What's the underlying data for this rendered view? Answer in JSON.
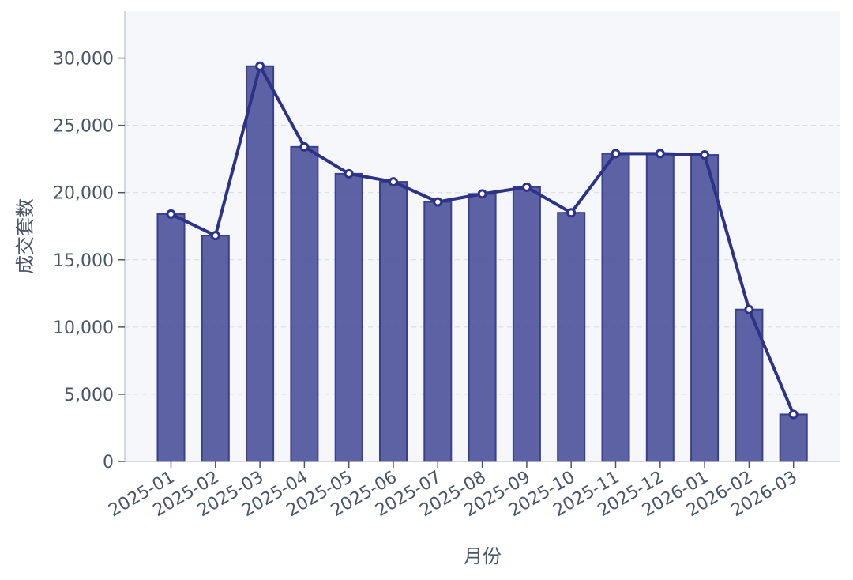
{
  "chart_data": {
    "type": "bar",
    "categories": [
      "2025-01",
      "2025-02",
      "2025-03",
      "2025-04",
      "2025-05",
      "2025-06",
      "2025-07",
      "2025-08",
      "2025-09",
      "2025-10",
      "2025-11",
      "2025-12",
      "2026-01",
      "2026-02",
      "2026-03"
    ],
    "series": [
      {
        "type": "bar",
        "values": [
          18400,
          16800,
          29400,
          23400,
          21400,
          20800,
          19300,
          19900,
          20400,
          18500,
          22900,
          22900,
          22800,
          11300,
          3500
        ]
      },
      {
        "type": "line",
        "values": [
          18400,
          16800,
          29400,
          23400,
          21400,
          20800,
          19300,
          19900,
          20400,
          18500,
          22900,
          22900,
          22800,
          11300,
          3500
        ]
      }
    ],
    "xlabel": "月份",
    "ylabel": "成交套数",
    "ylim": [
      0,
      33500
    ],
    "yticks": [
      0,
      5000,
      10000,
      15000,
      20000,
      25000,
      30000
    ],
    "ytick_labels": [
      "0",
      "5,000",
      "10,000",
      "15,000",
      "20,000",
      "25,000",
      "30,000"
    ],
    "grid": true,
    "colors": {
      "bar": "#4b5199",
      "line": "#2d3286",
      "plot_bg": "#f5f7fa"
    }
  }
}
